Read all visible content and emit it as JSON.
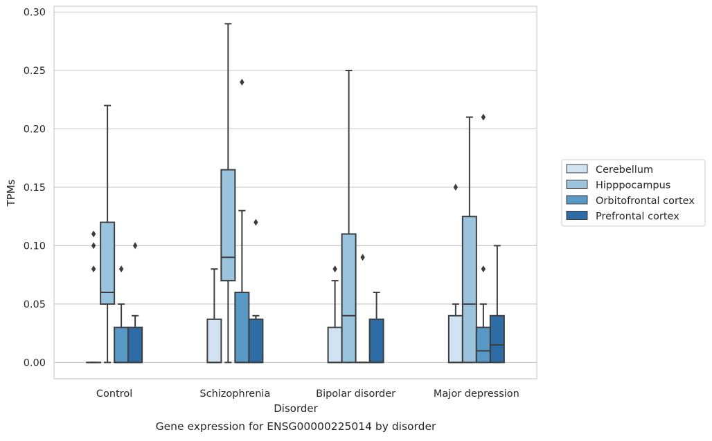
{
  "chart_data": {
    "type": "boxplot",
    "title": "",
    "caption": "Gene expression for ENSG00000225014 by disorder",
    "xlabel": "Disorder",
    "ylabel": "TPMs",
    "ylim": [
      -0.014,
      0.305
    ],
    "yticks": [
      0.0,
      0.05,
      0.1,
      0.15,
      0.2,
      0.25,
      0.3
    ],
    "ytick_labels": [
      "0.00",
      "0.05",
      "0.10",
      "0.15",
      "0.20",
      "0.25",
      "0.30"
    ],
    "grid": true,
    "legend_position": "right",
    "categories": [
      "Control",
      "Schizophrenia",
      "Bipolar disorder",
      "Major depression"
    ],
    "series": [
      {
        "name": "Cerebellum",
        "color": "#d1e2f2",
        "boxes": [
          {
            "whislo": 0.0,
            "q1": 0.0,
            "med": 0.0,
            "q3": 0.0,
            "whishi": 0.0,
            "fliers": [
              0.08,
              0.1,
              0.11
            ]
          },
          {
            "whislo": 0.0,
            "q1": 0.0,
            "med": 0.0,
            "q3": 0.037,
            "whishi": 0.08,
            "fliers": []
          },
          {
            "whislo": 0.0,
            "q1": 0.0,
            "med": 0.0,
            "q3": 0.03,
            "whishi": 0.07,
            "fliers": [
              0.08
            ]
          },
          {
            "whislo": 0.0,
            "q1": 0.0,
            "med": 0.0,
            "q3": 0.04,
            "whishi": 0.05,
            "fliers": [
              0.15
            ]
          }
        ]
      },
      {
        "name": "Hipppocampus",
        "color": "#9ac3dd",
        "boxes": [
          {
            "whislo": 0.0,
            "q1": 0.05,
            "med": 0.06,
            "q3": 0.12,
            "whishi": 0.22,
            "fliers": []
          },
          {
            "whislo": 0.0,
            "q1": 0.07,
            "med": 0.09,
            "q3": 0.165,
            "whishi": 0.29,
            "fliers": []
          },
          {
            "whislo": 0.0,
            "q1": 0.0,
            "med": 0.04,
            "q3": 0.11,
            "whishi": 0.25,
            "fliers": []
          },
          {
            "whislo": 0.0,
            "q1": 0.0,
            "med": 0.05,
            "q3": 0.125,
            "whishi": 0.21,
            "fliers": []
          }
        ]
      },
      {
        "name": "Orbitofrontal cortex",
        "color": "#5899c6",
        "boxes": [
          {
            "whislo": 0.0,
            "q1": 0.0,
            "med": 0.0,
            "q3": 0.03,
            "whishi": 0.05,
            "fliers": [
              0.08
            ]
          },
          {
            "whislo": 0.0,
            "q1": 0.0,
            "med": 0.0,
            "q3": 0.06,
            "whishi": 0.13,
            "fliers": [
              0.24
            ]
          },
          {
            "whislo": 0.0,
            "q1": 0.0,
            "med": 0.0,
            "q3": 0.0,
            "whishi": 0.0,
            "fliers": [
              0.09
            ]
          },
          {
            "whislo": 0.0,
            "q1": 0.0,
            "med": 0.01,
            "q3": 0.03,
            "whishi": 0.05,
            "fliers": [
              0.08,
              0.21
            ]
          }
        ]
      },
      {
        "name": "Prefrontal cortex",
        "color": "#2e6ca6",
        "boxes": [
          {
            "whislo": 0.0,
            "q1": 0.0,
            "med": 0.0,
            "q3": 0.03,
            "whishi": 0.04,
            "fliers": [
              0.1
            ]
          },
          {
            "whislo": 0.0,
            "q1": 0.0,
            "med": 0.0,
            "q3": 0.037,
            "whishi": 0.04,
            "fliers": [
              0.12
            ]
          },
          {
            "whislo": 0.0,
            "q1": 0.0,
            "med": 0.0,
            "q3": 0.037,
            "whishi": 0.06,
            "fliers": []
          },
          {
            "whislo": 0.0,
            "q1": 0.0,
            "med": 0.015,
            "q3": 0.04,
            "whishi": 0.1,
            "fliers": []
          }
        ]
      }
    ]
  }
}
